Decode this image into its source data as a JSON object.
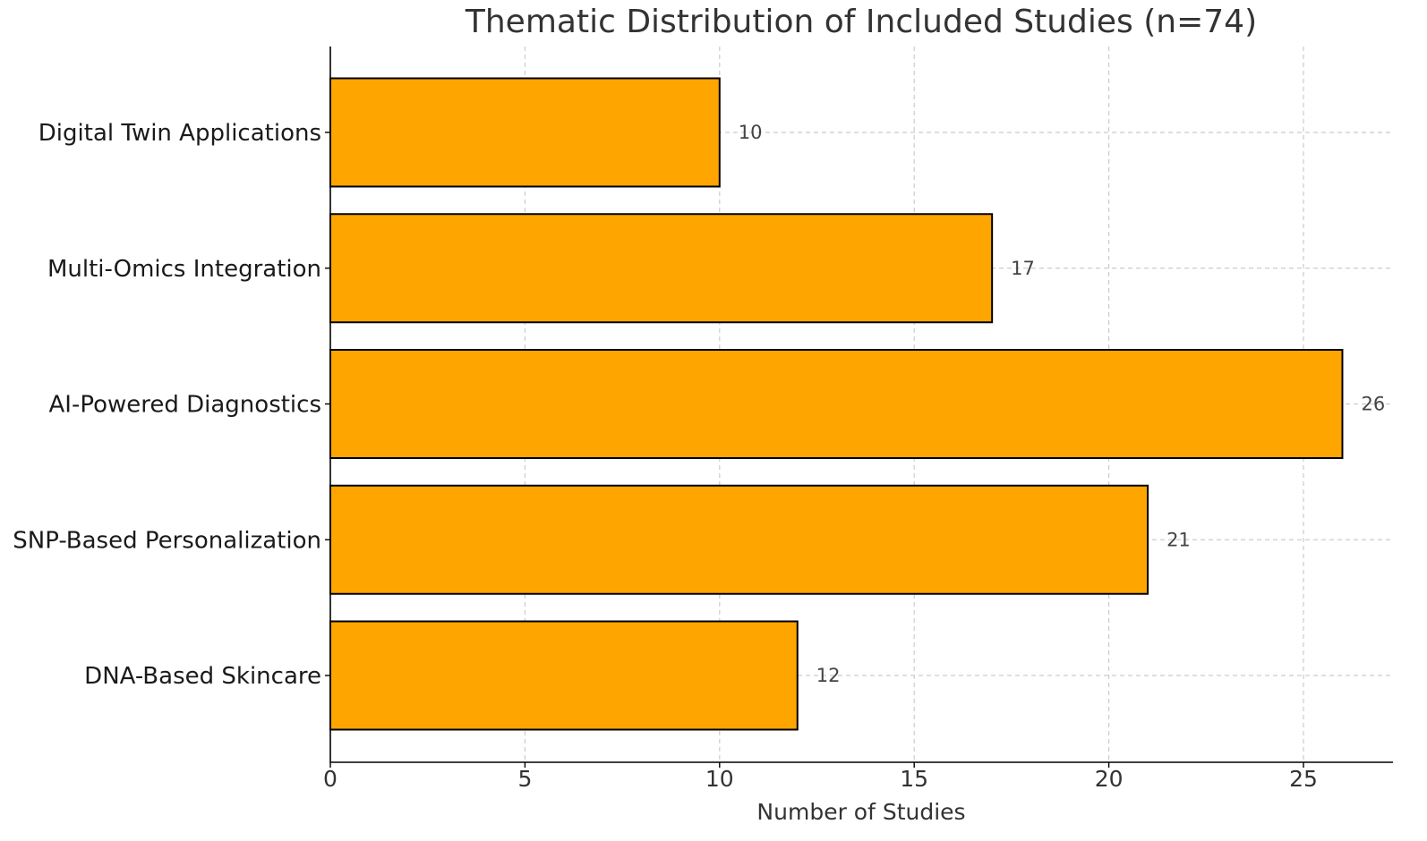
{
  "chart_data": {
    "type": "bar",
    "orientation": "horizontal",
    "title": "Thematic Distribution of Included Studies (n=74)",
    "xlabel": "Number of Studies",
    "ylabel": "",
    "categories": [
      "Digital Twin Applications",
      "Multi-Omics Integration",
      "AI-Powered Diagnostics",
      "SNP-Based Personalization",
      "DNA-Based Skincare"
    ],
    "values": [
      10,
      17,
      26,
      21,
      12
    ],
    "data_labels": [
      "10",
      "17",
      "26",
      "21",
      "12"
    ],
    "xlim": [
      0,
      27.3
    ],
    "xticks": [
      0,
      5,
      10,
      15,
      20,
      25
    ],
    "xtick_labels": [
      "0",
      "5",
      "10",
      "15",
      "20",
      "25"
    ],
    "grid": true,
    "legend": "none",
    "colors": {
      "bar_fill": "#FFA500",
      "bar_edge": "#000000",
      "grid": "#cccccc",
      "axis": "#000000",
      "text": "#333333"
    }
  }
}
